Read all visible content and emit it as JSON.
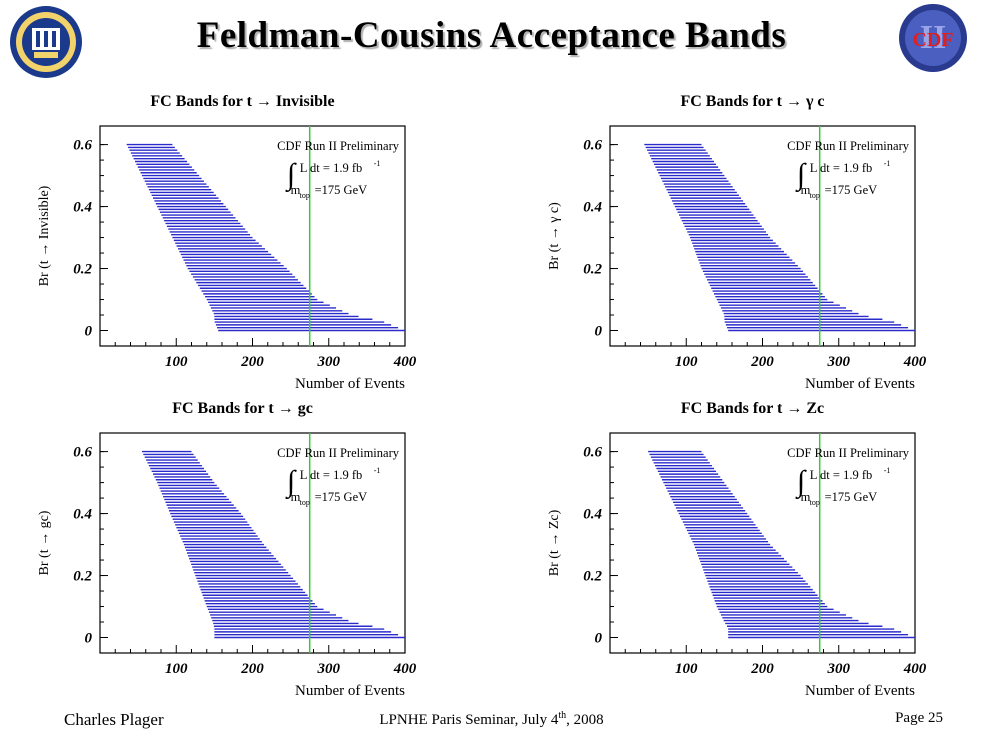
{
  "slide": {
    "title": "Feldman-Cousins Acceptance Bands",
    "footer_left": "Charles Plager",
    "footer_center_pre": "LPNHE Paris Seminar, July 4",
    "footer_center_sup": "th",
    "footer_center_post": ", 2008",
    "footer_right": "Page 25",
    "logo_left_icon": "university-of-california-seal-icon",
    "logo_right_icon": "cdp-logo-icon",
    "logo_right_text": "CDF",
    "logo_right_numeral": "II"
  },
  "colors": {
    "band": "#2b2bcc",
    "marker_line": "#33cc33",
    "axis": "#000000"
  },
  "chart_data": [
    {
      "type": "area",
      "title": "FC Bands for t → Invisible",
      "xlabel": "Number of Events",
      "ylabel": "Br (t → Invisible)",
      "xlim": [
        0,
        400
      ],
      "ylim": [
        -0.05,
        0.66
      ],
      "xticks": [
        100,
        200,
        300,
        400
      ],
      "yticks": [
        0,
        0.2,
        0.4,
        0.6
      ],
      "tick_labels_x": [
        "100",
        "200",
        "300",
        "400"
      ],
      "tick_labels_y": [
        "0",
        "0.2",
        "0.4",
        "0.6"
      ],
      "grid": false,
      "marker_x": 275,
      "annotation": {
        "experiment": "CDF Run II Preliminary",
        "lumi": "L dt = 1.9 fb",
        "lumi_sup": "-1",
        "mass": "m",
        "mass_sub": "top",
        "mass_val": "=175 GeV"
      },
      "band": {
        "br": [
          0.6,
          0.5,
          0.4,
          0.3,
          0.2,
          0.1,
          0.05,
          0.03,
          0
        ],
        "low": [
          35,
          55,
          75,
          95,
          115,
          140,
          150,
          150,
          155
        ],
        "high": [
          95,
          130,
          165,
          200,
          245,
          285,
          330,
          370,
          400
        ]
      }
    },
    {
      "type": "area",
      "title": "FC Bands for t → γ c",
      "xlabel": "Number of Events",
      "ylabel": "Br (t → γ c)",
      "xlim": [
        0,
        400
      ],
      "ylim": [
        -0.05,
        0.66
      ],
      "xticks": [
        100,
        200,
        300,
        400
      ],
      "yticks": [
        0,
        0.2,
        0.4,
        0.6
      ],
      "tick_labels_x": [
        "100",
        "200",
        "300",
        "400"
      ],
      "tick_labels_y": [
        "0",
        "0.2",
        "0.4",
        "0.6"
      ],
      "grid": false,
      "marker_x": 275,
      "annotation": {
        "experiment": "CDF Run II Preliminary",
        "lumi": "L dt = 1.9 fb",
        "lumi_sup": "-1",
        "mass": "m",
        "mass_sub": "top",
        "mass_val": "=175 GeV"
      },
      "band": {
        "br": [
          0.6,
          0.5,
          0.4,
          0.3,
          0.2,
          0.1,
          0.05,
          0.03,
          0
        ],
        "low": [
          45,
          65,
          85,
          105,
          120,
          140,
          150,
          150,
          155
        ],
        "high": [
          120,
          150,
          180,
          210,
          250,
          285,
          330,
          370,
          400
        ]
      }
    },
    {
      "type": "area",
      "title": "FC Bands for t → gc",
      "xlabel": "Number of Events",
      "ylabel": "Br (t → gc)",
      "xlim": [
        0,
        400
      ],
      "ylim": [
        -0.05,
        0.66
      ],
      "xticks": [
        100,
        200,
        300,
        400
      ],
      "yticks": [
        0,
        0.2,
        0.4,
        0.6
      ],
      "tick_labels_x": [
        "100",
        "200",
        "300",
        "400"
      ],
      "tick_labels_y": [
        "0",
        "0.2",
        "0.4",
        "0.6"
      ],
      "grid": false,
      "marker_x": 275,
      "annotation": {
        "experiment": "CDF Run II Preliminary",
        "lumi": "L dt = 1.9 fb",
        "lumi_sup": "-1",
        "mass": "m",
        "mass_sub": "top",
        "mass_val": "=175 GeV"
      },
      "band": {
        "br": [
          0.6,
          0.5,
          0.4,
          0.3,
          0.2,
          0.1,
          0.05,
          0.03,
          0
        ],
        "low": [
          55,
          75,
          92,
          110,
          125,
          140,
          148,
          150,
          150
        ],
        "high": [
          120,
          150,
          185,
          215,
          250,
          285,
          330,
          370,
          400
        ]
      }
    },
    {
      "type": "area",
      "title": "FC Bands for t → Zc",
      "xlabel": "Number of Events",
      "ylabel": "Br (t → Zc)",
      "xlim": [
        0,
        400
      ],
      "ylim": [
        -0.05,
        0.66
      ],
      "xticks": [
        100,
        200,
        300,
        400
      ],
      "yticks": [
        0,
        0.2,
        0.4,
        0.6
      ],
      "tick_labels_x": [
        "100",
        "200",
        "300",
        "400"
      ],
      "tick_labels_y": [
        "0",
        "0.2",
        "0.4",
        "0.6"
      ],
      "grid": false,
      "marker_x": 275,
      "annotation": {
        "experiment": "CDF Run II Preliminary",
        "lumi": "L dt = 1.9 fb",
        "lumi_sup": "-1",
        "mass": "m",
        "mass_sub": "top",
        "mass_val": "=175 GeV"
      },
      "band": {
        "br": [
          0.6,
          0.5,
          0.4,
          0.3,
          0.2,
          0.1,
          0.05,
          0.03,
          0
        ],
        "low": [
          50,
          70,
          90,
          110,
          125,
          140,
          150,
          155,
          155
        ],
        "high": [
          120,
          150,
          180,
          210,
          250,
          285,
          330,
          370,
          400
        ]
      }
    }
  ]
}
